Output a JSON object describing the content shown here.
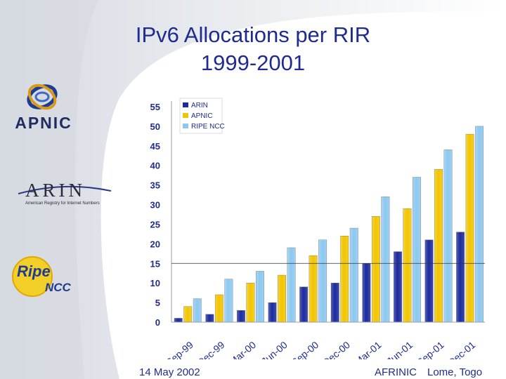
{
  "slide": {
    "title_line1": "IPv6 Allocations per RIR",
    "title_line2": "1999-2001",
    "footer_date": "14 May 2002",
    "footer_org": "AFRINIC",
    "footer_place": "Lome, Togo"
  },
  "logos": {
    "apnic": "APNIC",
    "arin": "ARIN",
    "arin_tagline": "American Registry for Internet Numbers",
    "ripe_top": "Ripe",
    "ripe_bottom": "NCC"
  },
  "colors": {
    "arin": "#1c2a9e",
    "apnic": "#f2c500",
    "ripe": "#8cc8f0",
    "title": "#1f2c8f"
  },
  "chart_data": {
    "type": "bar",
    "categories": [
      "Sep-99",
      "Dec-99",
      "Mar-00",
      "Jun-00",
      "Sep-00",
      "Dec-00",
      "Mar-01",
      "Jun-01",
      "Sep-01",
      "Dec-01"
    ],
    "series": [
      {
        "name": "ARIN",
        "values": [
          1,
          2,
          3,
          5,
          9,
          10,
          15,
          18,
          21,
          23
        ]
      },
      {
        "name": "APNIC",
        "values": [
          4,
          7,
          10,
          12,
          17,
          22,
          27,
          29,
          39,
          48
        ]
      },
      {
        "name": "RIPE NCC",
        "values": [
          6,
          11,
          13,
          19,
          21,
          24,
          32,
          37,
          44,
          50
        ]
      }
    ],
    "yticks": [
      "0",
      "5",
      "10",
      "15",
      "20",
      "25",
      "30",
      "35",
      "40",
      "45",
      "50",
      "55"
    ],
    "ylim": [
      0,
      55
    ],
    "legend_position": "top-left",
    "grid": false
  }
}
